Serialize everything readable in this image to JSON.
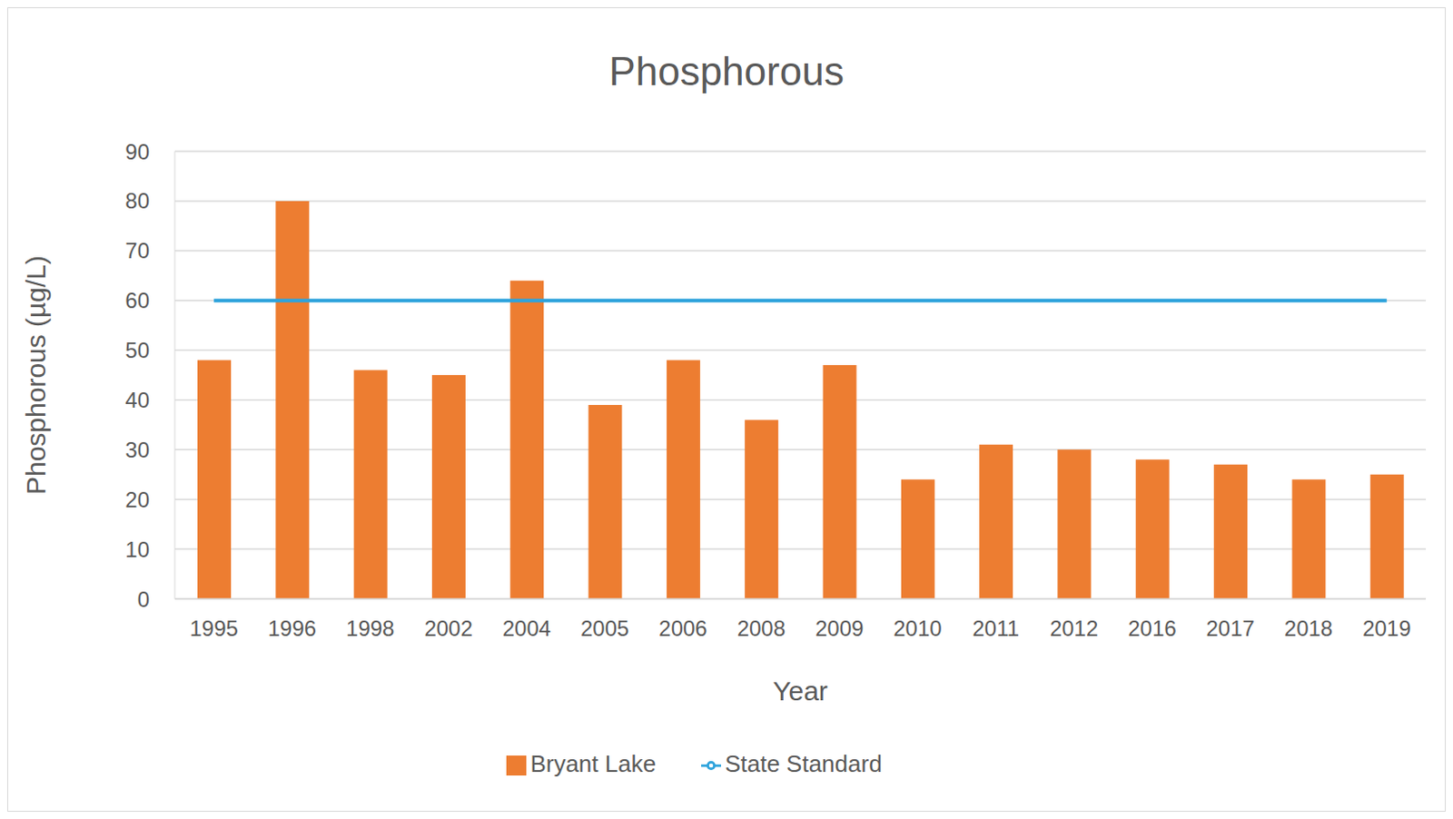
{
  "chart_data": {
    "type": "bar",
    "title": "Phosphorous",
    "x_label": "Year",
    "y_label": "Phosphorous (µg/L)",
    "categories": [
      "1995",
      "1996",
      "1998",
      "2002",
      "2004",
      "2005",
      "2006",
      "2008",
      "2009",
      "2010",
      "2011",
      "2012",
      "2016",
      "2017",
      "2018",
      "2019"
    ],
    "series": [
      {
        "name": "Bryant Lake",
        "type": "bar",
        "color": "#ed7d31",
        "values": [
          48,
          80,
          46,
          45,
          64,
          39,
          48,
          36,
          47,
          24,
          31,
          30,
          28,
          27,
          24,
          25
        ]
      },
      {
        "name": "State Standard",
        "type": "line",
        "color": "#2ea3dc",
        "values": [
          60,
          60,
          60,
          60,
          60,
          60,
          60,
          60,
          60,
          60,
          60,
          60,
          60,
          60,
          60,
          60
        ]
      }
    ],
    "ylim": [
      0,
      90
    ],
    "yticks": [
      0,
      10,
      20,
      30,
      40,
      50,
      60,
      70,
      80,
      90
    ],
    "grid": true,
    "legend": "bottom"
  }
}
